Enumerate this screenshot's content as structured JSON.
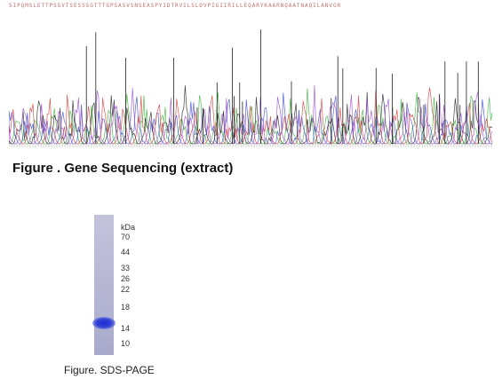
{
  "sequence": {
    "text": "SIPQMSLETTPSSVTSESSSGTTTGPSASVSNSEASPYIDTRVILSLDVPIGIIRILLEQARYKAARNQAATNAQILANVGR"
  },
  "figure1": {
    "caption": "Figure . Gene Sequencing (extract)"
  },
  "figure2": {
    "caption": "Figure. SDS-PAGE",
    "unit_label": "kDa",
    "markers": [
      "70",
      "44",
      "33",
      "26",
      "22",
      "18",
      "14",
      "10"
    ]
  },
  "colors": {
    "trace_a": "#3cb43c",
    "trace_c": "#3c4ccf",
    "trace_g": "#222222",
    "trace_t": "#d23c3c",
    "trace_extra": "#9a4fd0",
    "band": "#2430cf"
  }
}
